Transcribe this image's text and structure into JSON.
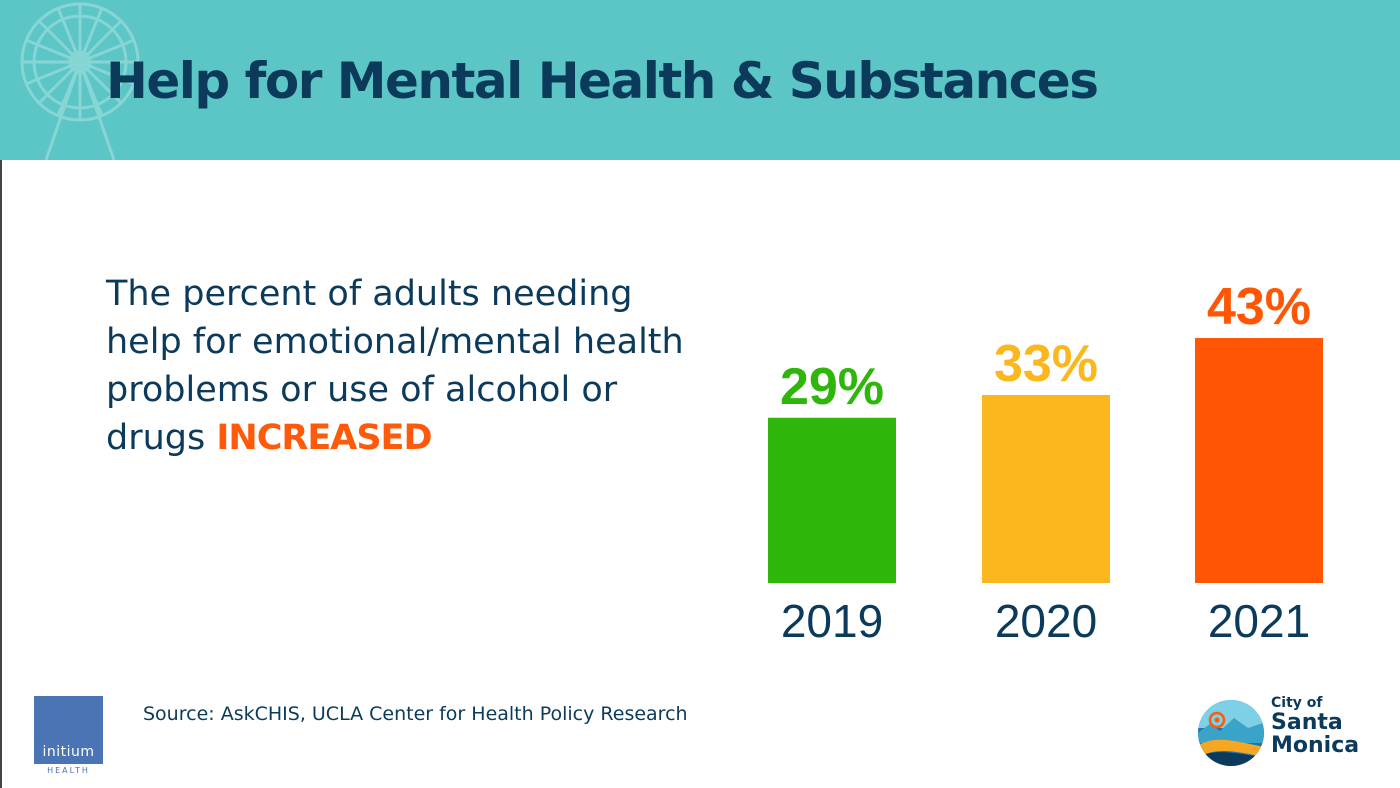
{
  "slide": {
    "title": "Help for Mental Health & Substances",
    "headline_text": "The percent of adults needing help for emotional/mental health problems or use of alcohol or drugs",
    "headline_emphasis": "INCREASED",
    "source": "Source: AskCHIS, UCLA Center for Health Policy Research"
  },
  "logos": {
    "initium_word": "initium",
    "initium_sub": "HEALTH",
    "santa_monica_line1": "City of",
    "santa_monica_line2": "Santa",
    "santa_monica_line3": "Monica"
  },
  "colors": {
    "header_bg": "#5cc5c5",
    "title_text": "#0c3a5b",
    "emphasis": "#ff5a0a"
  },
  "chart_data": {
    "type": "bar",
    "categories": [
      "2019",
      "2020",
      "2021"
    ],
    "values": [
      29,
      33,
      43
    ],
    "data_labels": [
      "29%",
      "33%",
      "43%"
    ],
    "bar_colors": [
      "#2fb60a",
      "#fdb71e",
      "#ff5505"
    ],
    "title": "",
    "xlabel": "",
    "ylabel": "",
    "grid": false
  }
}
